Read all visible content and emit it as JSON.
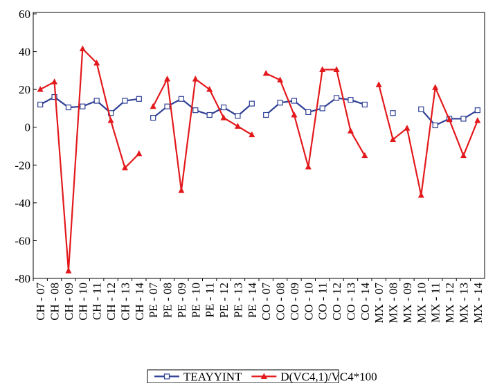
{
  "chart_data": {
    "type": "line",
    "categories": [
      "CH - 07",
      "CH - 08",
      "CH - 09",
      "CH - 10",
      "CH - 11",
      "CH - 12",
      "CH - 13",
      "CH - 14",
      "PE - 07",
      "PE - 08",
      "PE - 09",
      "PE - 10",
      "PE - 11",
      "PE - 12",
      "PE - 13",
      "PE - 14",
      "CO - 07",
      "CO - 08",
      "CO - 09",
      "CO - 10",
      "CO - 11",
      "CO - 12",
      "CO - 13",
      "CO - 14",
      "MX - 07",
      "MX - 08",
      "MX - 09",
      "MX - 10",
      "MX - 11",
      "MX - 12",
      "MX - 13",
      "MX - 14"
    ],
    "series": [
      {
        "name": "TEAYYINT",
        "color": "#2e3f94",
        "marker": "square",
        "values": [
          12,
          16,
          10.5,
          11,
          14,
          7.5,
          14,
          15,
          5,
          11,
          15,
          9,
          6.5,
          10.5,
          6,
          12.5,
          6.5,
          13,
          14,
          8,
          10,
          15.5,
          14.5,
          12,
          null,
          7.5,
          null,
          9.5,
          1,
          4.5,
          4.5,
          9
        ]
      },
      {
        "name": "D(VC4,1)/VC4*100",
        "color": "#e3191c",
        "marker": "triangle",
        "values": [
          20,
          24,
          -76,
          41.5,
          34,
          3.5,
          -21.5,
          -14,
          11,
          25.5,
          -33.5,
          25.5,
          20,
          5,
          0.5,
          -4,
          28.5,
          25,
          6.5,
          -21,
          30.5,
          30.5,
          -2,
          -15,
          22.5,
          -6.5,
          -0.5,
          -36,
          21,
          4,
          -15,
          3.5
        ]
      }
    ],
    "ylim": [
      -80,
      60
    ],
    "yticks": [
      -80,
      -60,
      -40,
      -20,
      0,
      20,
      40,
      60
    ],
    "grid": false,
    "legend": "bottom"
  }
}
